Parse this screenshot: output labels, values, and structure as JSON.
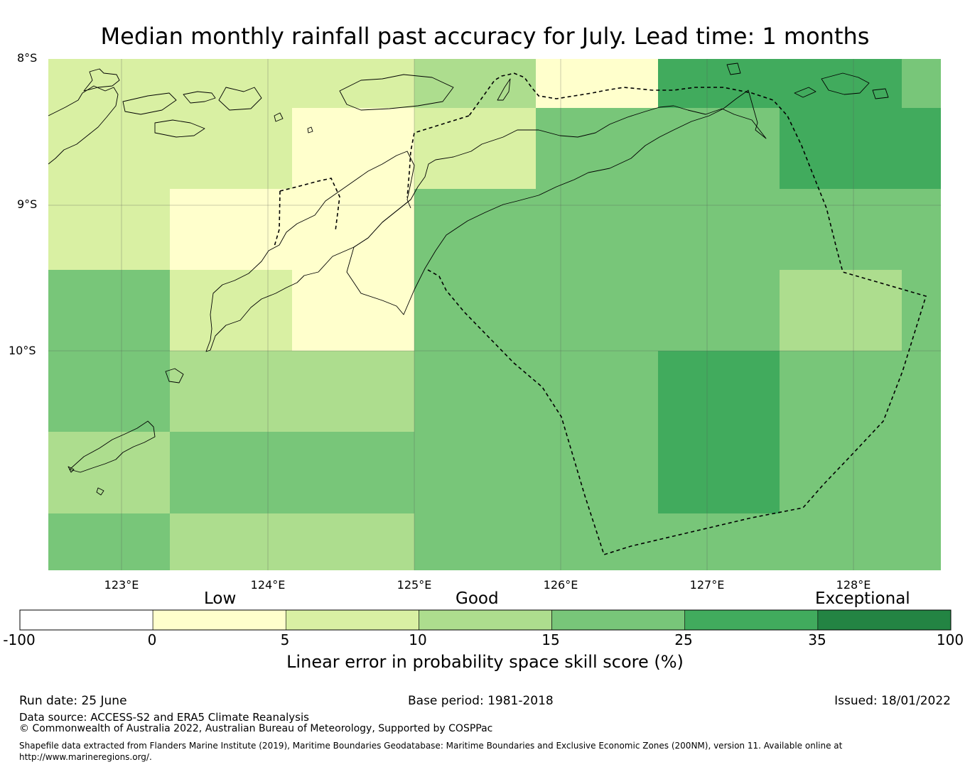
{
  "title": "Median monthly rainfall past accuracy for July. Lead time: 1 months",
  "map": {
    "lat_labels": [
      "8°S",
      "9°S",
      "10°S"
    ],
    "lon_labels": [
      "123°E",
      "124°E",
      "125°E",
      "126°E",
      "127°E",
      "128°E"
    ],
    "extent": {
      "lon": [
        122.5,
        128.6
      ],
      "lat_north": -8.0,
      "lat_south": -11.5
    },
    "cell_size_deg": 0.8333,
    "grid_rows": [
      {
        "lat_range": [
          -8.0,
          -8.33
        ],
        "classes": [
          "5-10",
          "5-10",
          "5-10",
          "10-15",
          "0-5",
          "25-35",
          "25-35",
          "15-25"
        ]
      },
      {
        "lat_range": [
          -8.33,
          -8.89
        ],
        "classes": [
          "5-10",
          "5-10",
          "0-5",
          "5-10",
          "15-25",
          "15-25",
          "25-35",
          "25-35"
        ]
      },
      {
        "lat_range": [
          -8.89,
          -9.44
        ],
        "classes": [
          "5-10",
          "0-5",
          "0-5",
          "15-25",
          "15-25",
          "15-25",
          "15-25",
          "15-25"
        ]
      },
      {
        "lat_range": [
          -9.44,
          -10.0
        ],
        "classes": [
          "15-25",
          "5-10",
          "0-5",
          "15-25",
          "15-25",
          "15-25",
          "10-15",
          "15-25"
        ]
      },
      {
        "lat_range": [
          -10.0,
          -10.56
        ],
        "classes": [
          "15-25",
          "10-15",
          "10-15",
          "15-25",
          "15-25",
          "25-35",
          "15-25",
          "15-25"
        ]
      },
      {
        "lat_range": [
          -10.56,
          -11.11
        ],
        "classes": [
          "10-15",
          "15-25",
          "15-25",
          "15-25",
          "15-25",
          "25-35",
          "15-25",
          "15-25"
        ]
      },
      {
        "lat_range": [
          -11.11,
          -11.5
        ],
        "classes": [
          "15-25",
          "10-15",
          "10-15",
          "15-25",
          "15-25",
          "15-25",
          "15-25",
          "15-25"
        ]
      }
    ]
  },
  "legend": {
    "categories": [
      "Low",
      "Good",
      "Exceptional"
    ],
    "ticks": [
      "-100",
      "0",
      "5",
      "10",
      "15",
      "25",
      "35",
      "100"
    ],
    "bins": [
      {
        "range": "-100-0",
        "color": "#ffffff"
      },
      {
        "range": "0-5",
        "color": "#ffffcc"
      },
      {
        "range": "5-10",
        "color": "#d9f0a3"
      },
      {
        "range": "10-15",
        "color": "#addd8e"
      },
      {
        "range": "15-25",
        "color": "#78c679"
      },
      {
        "range": "25-35",
        "color": "#41ab5d"
      },
      {
        "range": "35-100",
        "color": "#238443"
      }
    ],
    "label": "Linear error in probability space skill score (%)"
  },
  "footer": {
    "run_date": "Run date: 25 June",
    "base_period": "Base period: 1981-2018",
    "issued": "Issued: 18/01/2022",
    "data_source": "Data source: ACCESS-S2 and ERA5 Climate Reanalysis",
    "copyright": "© Commonwealth of Australia 2022, Australian Bureau of Meteorology, Supported by COSPPac",
    "shapefile_line1": "Shapefile data extracted from Flanders Marine Institute (2019), Maritime Boundaries Geodatabase: Maritime Boundaries and Exclusive Economic Zones (200NM), version 11. Available online at",
    "shapefile_line2": "http://www.marineregions.org/."
  }
}
